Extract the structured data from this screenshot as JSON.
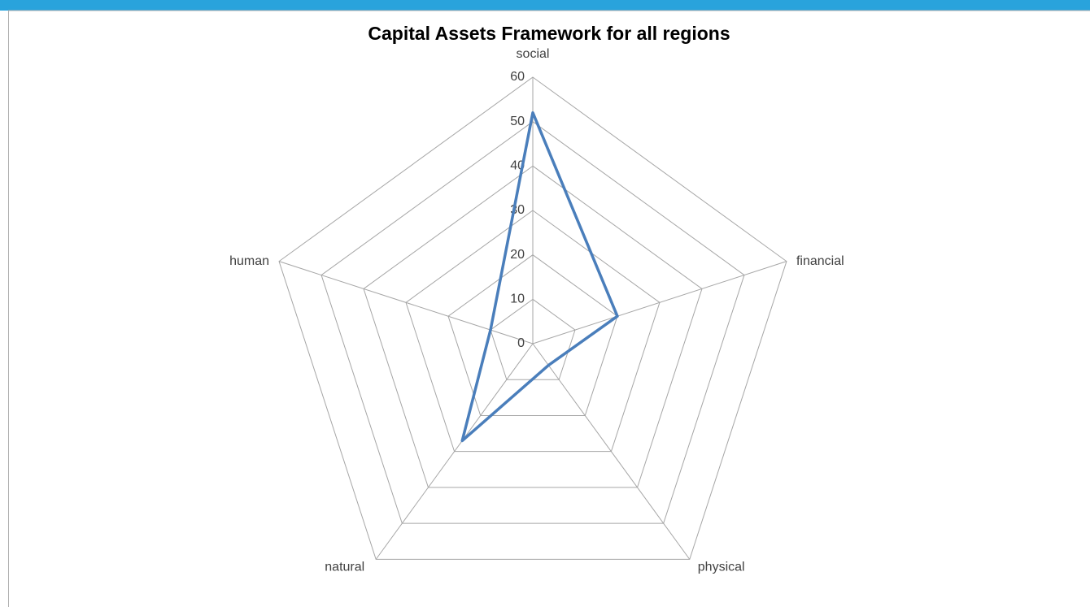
{
  "chart_data": {
    "type": "radar",
    "title": "Capital Assets Framework for all regions",
    "categories": [
      "social",
      "financial",
      "physical",
      "natural",
      "human"
    ],
    "series": [
      {
        "name": null,
        "color": "#4a7ebb",
        "values": [
          52,
          20,
          6,
          27,
          10
        ]
      }
    ],
    "ylim": [
      0,
      60
    ],
    "yticks": [
      0,
      10,
      20,
      30,
      40,
      50,
      60
    ],
    "grid": true
  }
}
